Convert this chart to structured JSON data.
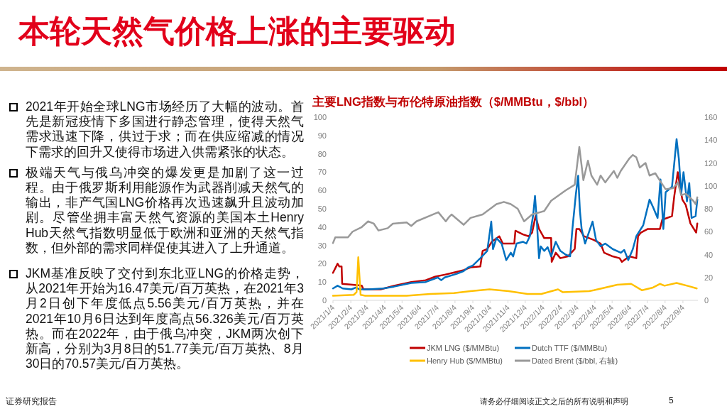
{
  "chart_data": {
    "type": "line",
    "title": "本轮天然气价格上涨的主要驱动",
    "subtitle": "主要LNG指数与布伦特原油指数（$/MMBtu，$/bbl）",
    "annotations": [
      "2021年开始全球LNG市场经历了大幅的波动。首先是新冠疫情下多国进行静态管理，使得天然气需求迅速下降，供过于求；而在供应缩减的情况下需求的回升又使得市场进入供需紧张的状态。",
      "极端天气与俄乌冲突的爆发更是加剧了这一过程。由于俄罗斯利用能源作为武器削减天然气的输出，非产气国LNG价格再次迅速飙升且波动加剧。尽管坐拥丰富天然气资源的美国本土Henry Hub天然气指数明显低于欧洲和亚洲的天然气指数，但外部的需求同样促使其进入了上升通道。",
      "JKM基准反映了交付到东北亚LNG的价格走势，从2021年开始为16.47美元/百万英热，在2021年3月2日创下年度低点5.56美元/百万英热，并在2021年10月6日达到年度高点56.326美元/百万英热。而在2022年，由于俄乌冲突，JKM两次创下新高，分别为3月8日的51.77美元/百万英热、8月30日的70.57美元/百万英热。",
      "证券研究报告",
      "请务必仔细阅读正文之后的所有说明和声明",
      "5"
    ],
    "xlim": [
      "2021-01-04",
      "2022-09-30"
    ],
    "xticks": [
      {
        "value": "2021-01-04",
        "label": "2021/1/4"
      },
      {
        "value": "2021-02-04",
        "label": "2021/2/4"
      },
      {
        "value": "2021-03-04",
        "label": "2021/3/4"
      },
      {
        "value": "2021-04-04",
        "label": "2021/4/4"
      },
      {
        "value": "2021-05-04",
        "label": "2021/5/4"
      },
      {
        "value": "2021-06-04",
        "label": "2021/6/4"
      },
      {
        "value": "2021-07-04",
        "label": "2021/7/4"
      },
      {
        "value": "2021-08-04",
        "label": "2021/8/4"
      },
      {
        "value": "2021-09-04",
        "label": "2021/9/4"
      },
      {
        "value": "2021-10-04",
        "label": "2021/10/4"
      },
      {
        "value": "2021-11-04",
        "label": "2021/11/4"
      },
      {
        "value": "2021-12-04",
        "label": "2021/12/4"
      },
      {
        "value": "2022-01-04",
        "label": "2022/1/4"
      },
      {
        "value": "2022-02-04",
        "label": "2022/2/4"
      },
      {
        "value": "2022-03-04",
        "label": "2022/3/4"
      },
      {
        "value": "2022-04-04",
        "label": "2022/4/4"
      },
      {
        "value": "2022-05-04",
        "label": "2022/5/4"
      },
      {
        "value": "2022-06-04",
        "label": "2022/6/4"
      },
      {
        "value": "2022-07-04",
        "label": "2022/7/4"
      },
      {
        "value": "2022-08-04",
        "label": "2022/8/4"
      },
      {
        "value": "2022-09-04",
        "label": "2022/9/4"
      }
    ],
    "ylim": [
      0,
      100
    ],
    "yticks": [
      0,
      10,
      20,
      30,
      40,
      50,
      60,
      70,
      80,
      90,
      100
    ],
    "y2lim": [
      0,
      160
    ],
    "y2ticks": [
      0,
      20,
      40,
      60,
      80,
      100,
      120,
      140,
      160
    ],
    "legend": "bottom",
    "series": [
      {
        "name": "JKM LNG ($/MMBtu)",
        "color": "#c00000",
        "x": [
          "2021-01-04",
          "2021-01-12",
          "2021-01-15",
          "2021-01-19",
          "2021-01-20",
          "2021-02-07",
          "2021-02-23",
          "2021-02-26",
          "2021-03-28",
          "2021-04-20",
          "2021-05-20",
          "2021-06-14",
          "2021-07-01",
          "2021-07-17",
          "2021-07-31",
          "2021-08-19",
          "2021-08-31",
          "2021-09-17",
          "2021-09-21",
          "2021-09-29",
          "2021-10-07",
          "2021-10-20",
          "2021-10-26",
          "2021-11-15",
          "2021-11-17",
          "2021-11-30",
          "2021-12-10",
          "2021-12-16",
          "2021-12-22",
          "2021-12-28",
          "2022-01-06",
          "2022-01-18",
          "2022-01-19",
          "2022-01-26",
          "2022-02-03",
          "2022-02-16",
          "2022-02-28",
          "2022-03-03",
          "2022-03-08",
          "2022-03-16",
          "2022-04-02",
          "2022-04-14",
          "2022-04-20",
          "2022-05-05",
          "2022-05-17",
          "2022-05-21",
          "2022-06-03",
          "2022-06-15",
          "2022-06-18",
          "2022-06-23",
          "2022-07-05",
          "2022-07-18",
          "2022-07-26",
          "2022-07-30",
          "2022-08-16",
          "2022-08-20",
          "2022-08-26",
          "2022-08-30",
          "2022-09-03",
          "2022-09-09",
          "2022-09-17",
          "2022-09-27",
          "2022-09-29"
        ],
        "values": [
          15,
          20,
          18.5,
          18.5,
          9,
          8.5,
          8,
          6,
          6,
          8,
          10,
          11,
          13,
          14,
          15,
          16.5,
          18,
          18.5,
          27,
          28,
          32,
          35,
          31,
          31,
          38,
          36,
          35,
          37,
          46,
          39,
          34,
          34,
          21,
          26,
          23,
          24,
          28,
          39,
          39,
          35,
          33,
          31,
          26,
          24,
          23,
          21,
          24,
          23,
          35,
          37,
          39,
          39,
          39,
          44,
          46,
          57,
          70,
          62,
          55,
          52,
          42,
          37,
          42
        ]
      },
      {
        "name": "Dutch TTF ($/MMBtu)",
        "color": "#0070c0",
        "x": [
          "2021-01-04",
          "2021-01-12",
          "2021-01-21",
          "2021-02-05",
          "2021-02-13",
          "2021-02-19",
          "2021-03-07",
          "2021-04-01",
          "2021-04-20",
          "2021-05-20",
          "2021-06-14",
          "2021-07-05",
          "2021-07-11",
          "2021-07-17",
          "2021-08-07",
          "2021-08-19",
          "2021-08-27",
          "2021-09-04",
          "2021-09-17",
          "2021-09-29",
          "2021-10-06",
          "2021-10-09",
          "2021-10-15",
          "2021-10-24",
          "2021-11-01",
          "2021-11-09",
          "2021-11-13",
          "2021-11-19",
          "2021-11-30",
          "2021-12-06",
          "2021-12-12",
          "2021-12-18",
          "2021-12-21",
          "2021-12-24",
          "2021-12-28",
          "2021-12-31",
          "2022-01-06",
          "2022-01-12",
          "2022-01-18",
          "2022-01-26",
          "2022-02-03",
          "2022-02-12",
          "2022-02-20",
          "2022-02-24",
          "2022-03-02",
          "2022-03-06",
          "2022-03-09",
          "2022-03-12",
          "2022-03-18",
          "2022-03-31",
          "2022-04-06",
          "2022-04-14",
          "2022-04-22",
          "2022-05-05",
          "2022-05-19",
          "2022-05-25",
          "2022-06-01",
          "2022-06-09",
          "2022-06-15",
          "2022-06-27",
          "2022-07-08",
          "2022-07-14",
          "2022-07-22",
          "2022-07-27",
          "2022-08-01",
          "2022-08-05",
          "2022-08-16",
          "2022-08-24",
          "2022-08-28",
          "2022-09-01",
          "2022-09-05",
          "2022-09-11",
          "2022-09-15",
          "2022-09-19",
          "2022-09-26",
          "2022-09-29"
        ],
        "values": [
          6.5,
          8,
          6.5,
          6,
          7,
          6,
          6,
          6.5,
          7.5,
          9.5,
          10,
          12.5,
          11,
          12.5,
          14.5,
          16,
          18,
          19,
          23,
          27,
          43,
          28,
          34,
          31,
          22,
          26,
          24,
          31,
          32,
          31,
          35,
          47,
          57,
          44,
          23,
          29.5,
          27,
          29,
          24,
          32,
          27,
          25,
          24,
          39,
          58,
          68,
          49,
          39,
          31,
          43,
          33,
          29.5,
          31,
          28,
          26,
          27.5,
          22,
          28,
          35,
          41,
          55,
          51,
          45,
          66,
          39,
          59,
          62,
          88,
          77,
          58,
          70,
          54,
          64,
          45,
          46,
          55
        ]
      },
      {
        "name": "Henry Hub ($/MMBtu)",
        "color": "#ffc000",
        "x": [
          "2021-01-04",
          "2021-02-09",
          "2021-02-14",
          "2021-02-17",
          "2021-02-21",
          "2021-03-01",
          "2021-04-01",
          "2021-05-12",
          "2021-06-22",
          "2021-08-02",
          "2021-08-31",
          "2021-10-03",
          "2021-11-05",
          "2021-12-08",
          "2022-01-01",
          "2022-01-30",
          "2022-02-07",
          "2022-03-25",
          "2022-04-02",
          "2022-04-22",
          "2022-05-13",
          "2022-06-06",
          "2022-06-25",
          "2022-07-14",
          "2022-07-26",
          "2022-08-03",
          "2022-08-24",
          "2022-09-17",
          "2022-09-28"
        ],
        "values": [
          2.5,
          3,
          4.5,
          23.5,
          3,
          2.5,
          2.5,
          2.5,
          3.5,
          4,
          5,
          6,
          5,
          3.5,
          3.5,
          6,
          4.5,
          5,
          5.5,
          7,
          8.5,
          9,
          5.5,
          7,
          9,
          8,
          9.5,
          7.5,
          6.5
        ]
      },
      {
        "name": "Dated Brent ($/bbl, 右轴)",
        "color": "#999999",
        "axis": "y2",
        "x": [
          "2021-01-04",
          "2021-01-08",
          "2021-01-30",
          "2021-02-07",
          "2021-02-23",
          "2021-03-06",
          "2021-03-16",
          "2021-03-24",
          "2021-04-09",
          "2021-04-18",
          "2021-05-12",
          "2021-05-20",
          "2021-05-29",
          "2021-06-22",
          "2021-07-06",
          "2021-07-19",
          "2021-07-25",
          "2021-07-29",
          "2021-08-19",
          "2021-08-31",
          "2021-09-21",
          "2021-10-15",
          "2021-10-28",
          "2021-11-09",
          "2021-11-21",
          "2021-12-02",
          "2021-12-16",
          "2022-01-06",
          "2022-01-18",
          "2022-02-12",
          "2022-02-28",
          "2022-03-08",
          "2022-03-15",
          "2022-03-23",
          "2022-03-29",
          "2022-04-08",
          "2022-04-14",
          "2022-04-22",
          "2022-05-07",
          "2022-05-13",
          "2022-05-19",
          "2022-06-03",
          "2022-06-09",
          "2022-06-15",
          "2022-06-21",
          "2022-07-01",
          "2022-07-08",
          "2022-07-18",
          "2022-07-28",
          "2022-08-05",
          "2022-08-18",
          "2022-08-26",
          "2022-09-01",
          "2022-09-09",
          "2022-09-22",
          "2022-09-26",
          "2022-09-29"
        ],
        "values": [
          50,
          55,
          55,
          60,
          64,
          69,
          67,
          61,
          63,
          67,
          68,
          65,
          69,
          74,
          77,
          69,
          73,
          75,
          66,
          72,
          75,
          84,
          86,
          84,
          80,
          69,
          75,
          78,
          87,
          96,
          101,
          134,
          105,
          122,
          109,
          101,
          109,
          103,
          113,
          107,
          113,
          124,
          127,
          125,
          116,
          120,
          109,
          111,
          103,
          97,
          98,
          103,
          92,
          93,
          87,
          84,
          90
        ]
      }
    ]
  }
}
